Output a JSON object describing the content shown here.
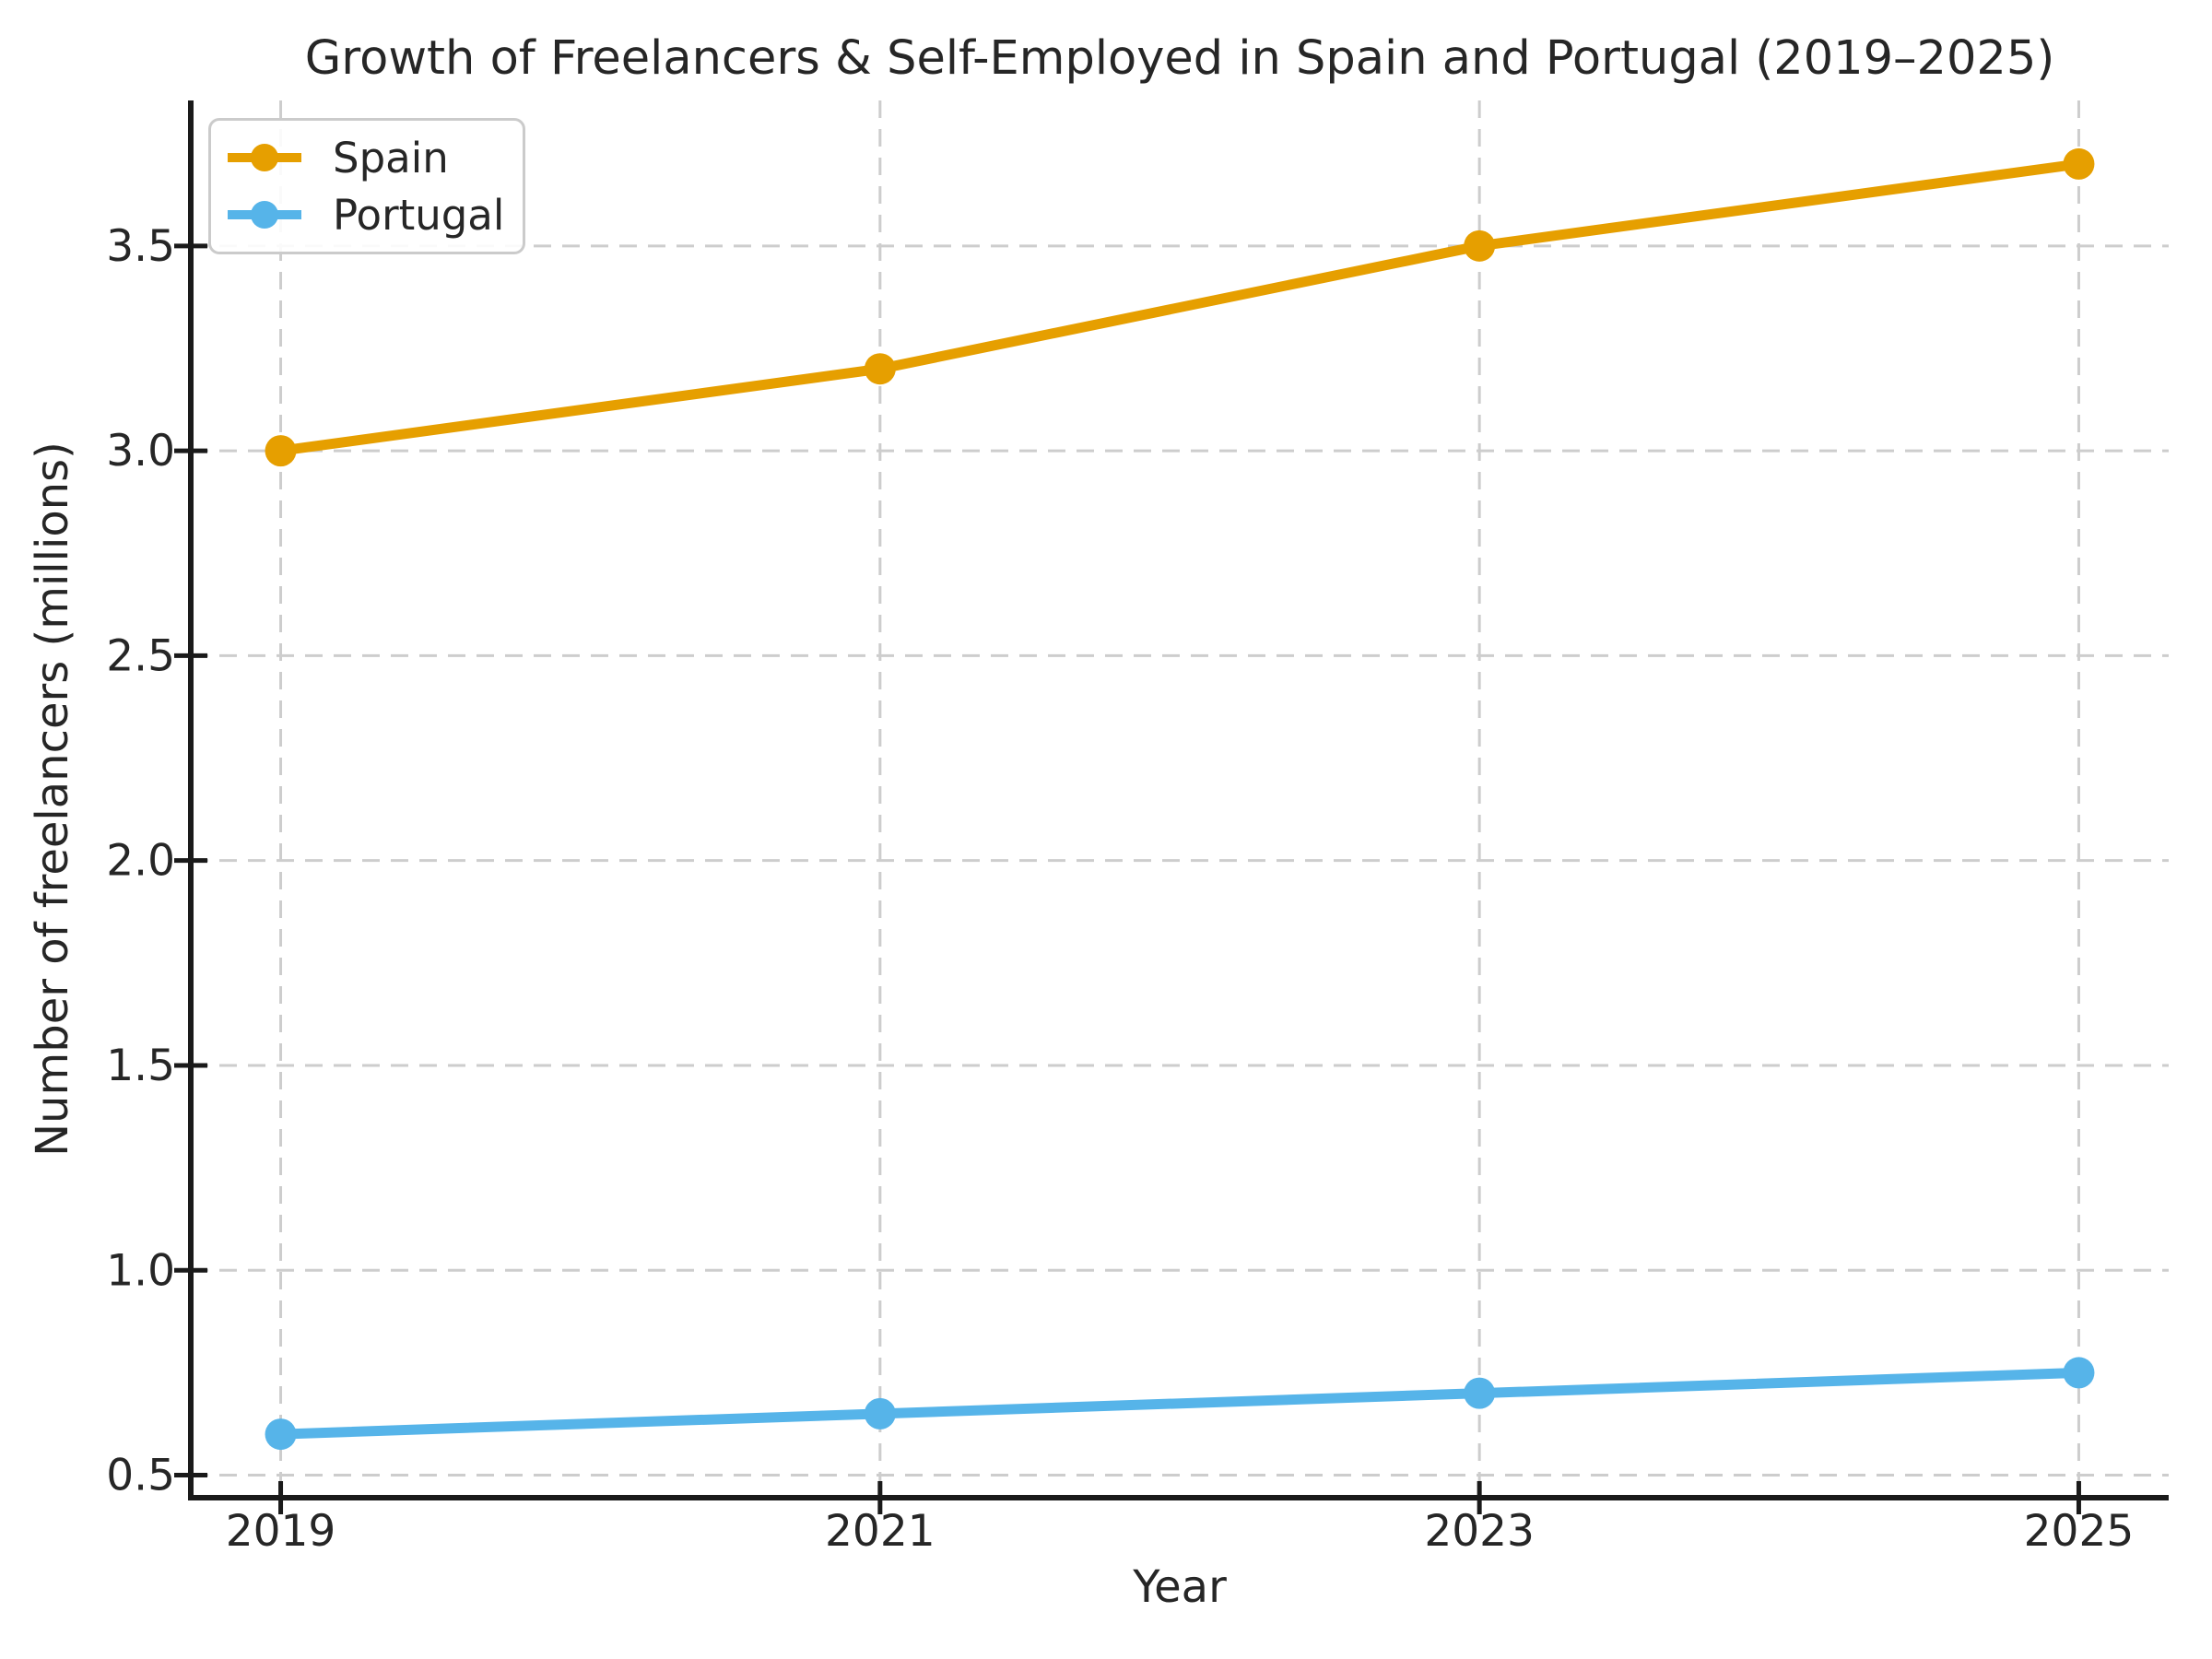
{
  "chart_data": {
    "type": "line",
    "title": "Growth of Freelancers & Self-Employed in Spain and Portugal (2019–2025)",
    "xlabel": "Year",
    "ylabel": "Number of freelancers (millions)",
    "x": [
      2019,
      2021,
      2023,
      2025
    ],
    "series": [
      {
        "name": "Spain",
        "color": "#E69F00",
        "values": [
          3.0,
          3.2,
          3.5,
          3.7
        ]
      },
      {
        "name": "Portugal",
        "color": "#56B4E9",
        "values": [
          0.6,
          0.65,
          0.7,
          0.75
        ]
      }
    ],
    "xticks": [
      2019,
      2021,
      2023,
      2025
    ],
    "xtick_labels": [
      "2019",
      "2021",
      "2023",
      "2025"
    ],
    "yticks": [
      0.5,
      1.0,
      1.5,
      2.0,
      2.5,
      3.0,
      3.5
    ],
    "ytick_labels": [
      "0.5",
      "1.0",
      "1.5",
      "2.0",
      "2.5",
      "3.0",
      "3.5"
    ],
    "xlim": [
      2018.7,
      2025.3
    ],
    "ylim": [
      0.445,
      3.855
    ],
    "grid": true,
    "grid_style": "dashed",
    "legend_position": "upper left",
    "spines": [
      "left",
      "bottom"
    ]
  },
  "colors": {
    "spain": "#E69F00",
    "portugal": "#56B4E9",
    "grid": "#cdcdcd",
    "axis": "#1a1a1a",
    "text": "#262626",
    "background": "#ffffff",
    "legend_border": "#cbcbcb"
  }
}
